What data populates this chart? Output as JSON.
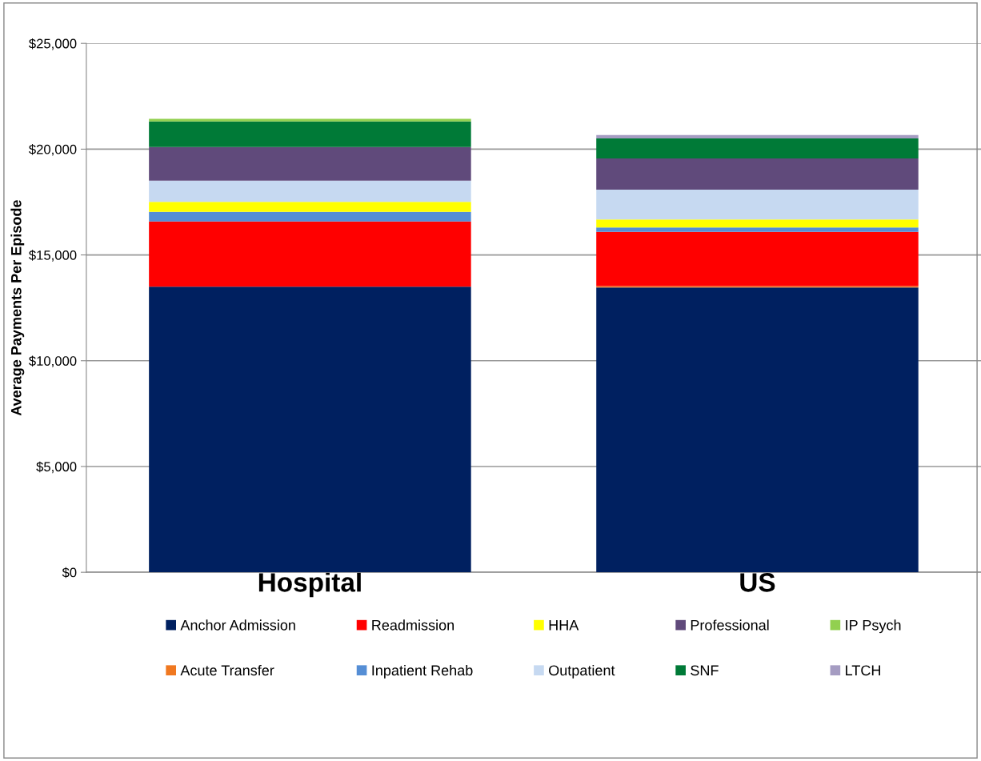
{
  "chart_data": {
    "type": "bar",
    "stacked": true,
    "ylabel": "Average Payments Per Episode",
    "categories": [
      "Hospital",
      "US"
    ],
    "ylim": [
      0,
      25000
    ],
    "yticks": [
      {
        "value": 0,
        "label": "$0"
      },
      {
        "value": 5000,
        "label": "$5,000"
      },
      {
        "value": 10000,
        "label": "$10,000"
      },
      {
        "value": 15000,
        "label": "$15,000"
      },
      {
        "value": 20000,
        "label": "$20,000"
      },
      {
        "value": 25000,
        "label": "$25,000"
      }
    ],
    "grid": "y",
    "legend": "bottom",
    "series": [
      {
        "name": "Anchor Admission",
        "color": "#002060",
        "values": [
          13500,
          13460
        ]
      },
      {
        "name": "Acute Transfer",
        "color": "#f07820",
        "values": [
          0,
          70
        ]
      },
      {
        "name": "Readmission",
        "color": "#ff0000",
        "values": [
          3080,
          2560
        ]
      },
      {
        "name": "Inpatient Rehab",
        "color": "#558ed5",
        "values": [
          460,
          210
        ]
      },
      {
        "name": "HHA",
        "color": "#ffff00",
        "values": [
          470,
          380
        ]
      },
      {
        "name": "Outpatient",
        "color": "#c6d9f1",
        "values": [
          1000,
          1410
        ]
      },
      {
        "name": "Professional",
        "color": "#604a7b",
        "values": [
          1590,
          1470
        ]
      },
      {
        "name": "SNF",
        "color": "#007a37",
        "values": [
          1210,
          950
        ]
      },
      {
        "name": "IP Psych",
        "color": "#92d050",
        "values": [
          120,
          0
        ]
      },
      {
        "name": "LTCH",
        "color": "#a59cc2",
        "values": [
          0,
          160
        ]
      }
    ]
  }
}
